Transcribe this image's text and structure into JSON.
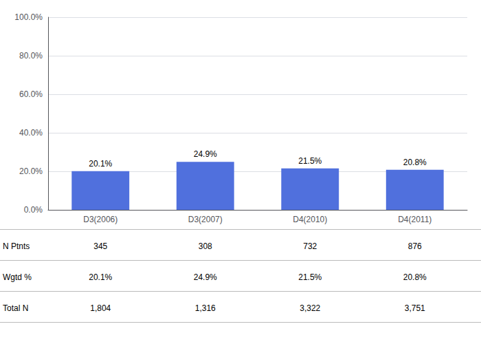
{
  "chart_data": {
    "type": "bar",
    "categories": [
      "D3(2006)",
      "D3(2007)",
      "D4(2010)",
      "D4(2011)"
    ],
    "values": [
      20.1,
      24.9,
      21.5,
      20.8
    ],
    "value_labels": [
      "20.1%",
      "24.9%",
      "21.5%",
      "20.8%"
    ],
    "data_labels": true,
    "ylim": [
      0,
      100
    ],
    "yticks": [
      {
        "value": 0,
        "label": "0.0%"
      },
      {
        "value": 20,
        "label": "20.0%"
      },
      {
        "value": 40,
        "label": "40.0%"
      },
      {
        "value": 60,
        "label": "60.0%"
      },
      {
        "value": 80,
        "label": "80.0%"
      },
      {
        "value": 100,
        "label": "100.0%"
      }
    ],
    "grid": true,
    "table": [
      {
        "name": "N Ptnts",
        "values": [
          345,
          308,
          732,
          876
        ]
      },
      {
        "name": "Wgtd %",
        "values": [
          20.1,
          24.9,
          21.5,
          20.8
        ],
        "value_labels": [
          "20.1%",
          "24.9%",
          "21.5%",
          "20.8%"
        ]
      },
      {
        "name": "Total N",
        "values": [
          1804,
          1316,
          3322,
          3751
        ],
        "value_labels": [
          "1,804",
          "1,316",
          "3,322",
          "3,751"
        ]
      }
    ]
  }
}
